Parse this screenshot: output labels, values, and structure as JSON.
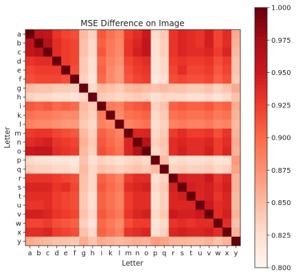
{
  "chart_data": {
    "type": "heatmap",
    "title": "MSE Difference on Image",
    "xlabel": "Letter",
    "ylabel": "Letter",
    "x_categories": [
      "a",
      "b",
      "c",
      "d",
      "e",
      "f",
      "g",
      "h",
      "i",
      "k",
      "l",
      "m",
      "n",
      "o",
      "p",
      "q",
      "r",
      "s",
      "t",
      "u",
      "v",
      "w",
      "x",
      "y"
    ],
    "y_categories": [
      "a",
      "b",
      "c",
      "d",
      "e",
      "f",
      "g",
      "h",
      "i",
      "k",
      "l",
      "m",
      "n",
      "o",
      "p",
      "q",
      "r",
      "s",
      "t",
      "u",
      "v",
      "w",
      "x",
      "y"
    ],
    "colormap": "Reds",
    "color_low": "#fff5f0",
    "color_high": "#67000d",
    "vmin": 0.8,
    "vmax": 1.0,
    "colorbar_ticks": [
      "1.000",
      "0.975",
      "0.950",
      "0.925",
      "0.900",
      "0.875",
      "0.850",
      "0.825",
      "0.800"
    ],
    "values": [
      [
        1.0,
        0.96,
        0.955,
        0.93,
        0.92,
        0.915,
        0.85,
        0.835,
        0.91,
        0.895,
        0.885,
        0.925,
        0.935,
        0.95,
        0.83,
        0.84,
        0.93,
        0.94,
        0.935,
        0.93,
        0.945,
        0.92,
        0.935,
        0.86
      ],
      [
        0.96,
        1.0,
        0.965,
        0.935,
        0.925,
        0.92,
        0.845,
        0.83,
        0.905,
        0.89,
        0.88,
        0.93,
        0.94,
        0.955,
        0.825,
        0.835,
        0.93,
        0.94,
        0.935,
        0.93,
        0.945,
        0.92,
        0.935,
        0.855
      ],
      [
        0.955,
        0.965,
        1.0,
        0.935,
        0.925,
        0.92,
        0.845,
        0.83,
        0.91,
        0.89,
        0.88,
        0.93,
        0.945,
        0.955,
        0.825,
        0.835,
        0.93,
        0.94,
        0.935,
        0.935,
        0.94,
        0.925,
        0.94,
        0.85
      ],
      [
        0.93,
        0.935,
        0.935,
        1.0,
        0.925,
        0.92,
        0.84,
        0.825,
        0.9,
        0.885,
        0.875,
        0.92,
        0.93,
        0.935,
        0.82,
        0.83,
        0.925,
        0.93,
        0.925,
        0.925,
        0.93,
        0.915,
        0.925,
        0.845
      ],
      [
        0.92,
        0.925,
        0.925,
        0.925,
        1.0,
        0.915,
        0.84,
        0.825,
        0.905,
        0.88,
        0.87,
        0.915,
        0.925,
        0.93,
        0.82,
        0.83,
        0.92,
        0.935,
        0.92,
        0.92,
        0.925,
        0.91,
        0.92,
        0.845
      ],
      [
        0.915,
        0.92,
        0.92,
        0.92,
        0.915,
        1.0,
        0.835,
        0.82,
        0.9,
        0.88,
        0.87,
        0.91,
        0.92,
        0.925,
        0.815,
        0.825,
        0.915,
        0.92,
        0.915,
        0.915,
        0.92,
        0.905,
        0.915,
        0.84
      ],
      [
        0.85,
        0.845,
        0.845,
        0.84,
        0.84,
        0.835,
        1.0,
        0.83,
        0.85,
        0.845,
        0.84,
        0.85,
        0.855,
        0.85,
        0.845,
        0.85,
        0.845,
        0.845,
        0.84,
        0.84,
        0.845,
        0.835,
        0.845,
        0.86
      ],
      [
        0.835,
        0.83,
        0.83,
        0.825,
        0.825,
        0.82,
        0.83,
        1.0,
        0.84,
        0.835,
        0.83,
        0.835,
        0.84,
        0.835,
        0.825,
        0.83,
        0.83,
        0.83,
        0.825,
        0.825,
        0.83,
        0.82,
        0.83,
        0.845
      ],
      [
        0.91,
        0.905,
        0.91,
        0.9,
        0.905,
        0.9,
        0.85,
        0.84,
        1.0,
        0.89,
        0.885,
        0.905,
        0.91,
        0.915,
        0.835,
        0.845,
        0.905,
        0.91,
        0.905,
        0.905,
        0.91,
        0.9,
        0.905,
        0.86
      ],
      [
        0.895,
        0.89,
        0.89,
        0.885,
        0.88,
        0.88,
        0.845,
        0.835,
        0.89,
        1.0,
        0.88,
        0.895,
        0.9,
        0.905,
        0.83,
        0.84,
        0.895,
        0.9,
        0.895,
        0.895,
        0.9,
        0.89,
        0.895,
        0.855
      ],
      [
        0.885,
        0.88,
        0.88,
        0.875,
        0.87,
        0.87,
        0.84,
        0.83,
        0.885,
        0.88,
        1.0,
        0.885,
        0.89,
        0.895,
        0.825,
        0.835,
        0.885,
        0.89,
        0.885,
        0.885,
        0.89,
        0.88,
        0.885,
        0.85
      ],
      [
        0.925,
        0.93,
        0.93,
        0.92,
        0.915,
        0.91,
        0.85,
        0.835,
        0.905,
        0.895,
        0.885,
        1.0,
        0.94,
        0.94,
        0.83,
        0.84,
        0.925,
        0.935,
        0.925,
        0.925,
        0.93,
        0.915,
        0.93,
        0.855
      ],
      [
        0.935,
        0.94,
        0.945,
        0.93,
        0.925,
        0.92,
        0.855,
        0.84,
        0.91,
        0.9,
        0.89,
        0.94,
        1.0,
        0.965,
        0.835,
        0.845,
        0.935,
        0.94,
        0.935,
        0.935,
        0.94,
        0.925,
        0.935,
        0.86
      ],
      [
        0.95,
        0.955,
        0.955,
        0.935,
        0.93,
        0.925,
        0.85,
        0.835,
        0.915,
        0.905,
        0.895,
        0.94,
        0.965,
        1.0,
        0.83,
        0.84,
        0.935,
        0.945,
        0.935,
        0.935,
        0.945,
        0.925,
        0.94,
        0.855
      ],
      [
        0.83,
        0.825,
        0.825,
        0.82,
        0.82,
        0.815,
        0.845,
        0.825,
        0.835,
        0.83,
        0.825,
        0.83,
        0.835,
        0.83,
        1.0,
        0.85,
        0.825,
        0.83,
        0.825,
        0.825,
        0.83,
        0.82,
        0.825,
        0.87
      ],
      [
        0.84,
        0.835,
        0.835,
        0.83,
        0.83,
        0.825,
        0.85,
        0.83,
        0.845,
        0.84,
        0.835,
        0.84,
        0.845,
        0.84,
        0.85,
        1.0,
        0.835,
        0.84,
        0.835,
        0.835,
        0.84,
        0.83,
        0.835,
        0.865
      ],
      [
        0.93,
        0.93,
        0.93,
        0.925,
        0.92,
        0.915,
        0.845,
        0.83,
        0.905,
        0.895,
        0.885,
        0.925,
        0.935,
        0.935,
        0.825,
        0.835,
        1.0,
        0.945,
        0.94,
        0.94,
        0.95,
        0.93,
        0.94,
        0.855
      ],
      [
        0.94,
        0.94,
        0.94,
        0.93,
        0.935,
        0.92,
        0.845,
        0.83,
        0.91,
        0.9,
        0.89,
        0.935,
        0.94,
        0.945,
        0.83,
        0.84,
        0.945,
        1.0,
        0.945,
        0.94,
        0.945,
        0.935,
        0.945,
        0.855
      ],
      [
        0.935,
        0.935,
        0.935,
        0.925,
        0.92,
        0.915,
        0.84,
        0.825,
        0.905,
        0.895,
        0.885,
        0.925,
        0.935,
        0.935,
        0.825,
        0.835,
        0.94,
        0.945,
        1.0,
        0.94,
        0.945,
        0.93,
        0.94,
        0.85
      ],
      [
        0.93,
        0.93,
        0.935,
        0.925,
        0.92,
        0.915,
        0.84,
        0.825,
        0.905,
        0.895,
        0.885,
        0.925,
        0.935,
        0.935,
        0.825,
        0.835,
        0.94,
        0.94,
        0.94,
        1.0,
        0.95,
        0.935,
        0.94,
        0.85
      ],
      [
        0.945,
        0.945,
        0.94,
        0.93,
        0.925,
        0.92,
        0.845,
        0.83,
        0.91,
        0.9,
        0.89,
        0.93,
        0.94,
        0.945,
        0.83,
        0.84,
        0.95,
        0.945,
        0.945,
        0.95,
        1.0,
        0.935,
        0.945,
        0.855
      ],
      [
        0.92,
        0.92,
        0.925,
        0.915,
        0.91,
        0.905,
        0.835,
        0.82,
        0.9,
        0.89,
        0.88,
        0.915,
        0.925,
        0.925,
        0.82,
        0.83,
        0.93,
        0.935,
        0.93,
        0.935,
        0.935,
        1.0,
        0.935,
        0.845
      ],
      [
        0.935,
        0.935,
        0.94,
        0.925,
        0.92,
        0.915,
        0.845,
        0.83,
        0.905,
        0.895,
        0.885,
        0.93,
        0.935,
        0.94,
        0.825,
        0.835,
        0.94,
        0.945,
        0.94,
        0.94,
        0.945,
        0.935,
        1.0,
        0.855
      ],
      [
        0.86,
        0.855,
        0.85,
        0.845,
        0.845,
        0.84,
        0.86,
        0.845,
        0.86,
        0.855,
        0.85,
        0.855,
        0.86,
        0.855,
        0.87,
        0.865,
        0.855,
        0.855,
        0.85,
        0.85,
        0.855,
        0.845,
        0.855,
        1.0
      ]
    ]
  }
}
